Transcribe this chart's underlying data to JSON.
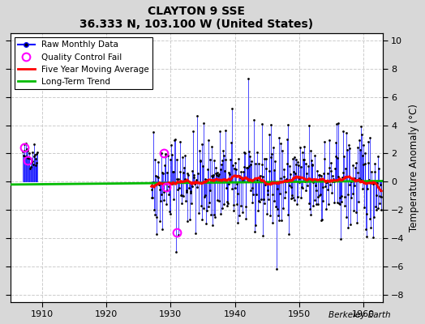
{
  "title": "CLAYTON 9 SSE",
  "subtitle": "36.333 N, 103.100 W (United States)",
  "ylabel": "Temperature Anomaly (°C)",
  "watermark": "Berkeley Earth",
  "xlim": [
    1905,
    1963
  ],
  "ylim": [
    -8.5,
    10.5
  ],
  "yticks": [
    -8,
    -6,
    -4,
    -2,
    0,
    2,
    4,
    6,
    8,
    10
  ],
  "xticks": [
    1910,
    1920,
    1930,
    1940,
    1950,
    1960
  ],
  "fig_bg_color": "#d8d8d8",
  "plot_bg_color": "#ffffff",
  "grid_color": "#cccccc",
  "raw_line_color": "#0000ff",
  "raw_dot_color": "#000000",
  "qc_fail_color": "#ff00ff",
  "moving_avg_color": "#ff0000",
  "trend_color": "#00bb00",
  "seed": 42,
  "early_t_start": 1907.0,
  "early_t_end": 1909.3,
  "main_t_start": 1927.0,
  "main_t_end": 1962.92,
  "early_mean": 1.9,
  "early_std": 0.5,
  "main_std": 1.9,
  "qc_fail_points": [
    [
      1907.2,
      2.4
    ],
    [
      1907.7,
      1.5
    ],
    [
      1928.9,
      2.0
    ],
    [
      1929.3,
      -0.4
    ],
    [
      1931.0,
      -3.6
    ]
  ],
  "trend_x": [
    1905,
    1963
  ],
  "trend_y": [
    -0.2,
    0.05
  ]
}
